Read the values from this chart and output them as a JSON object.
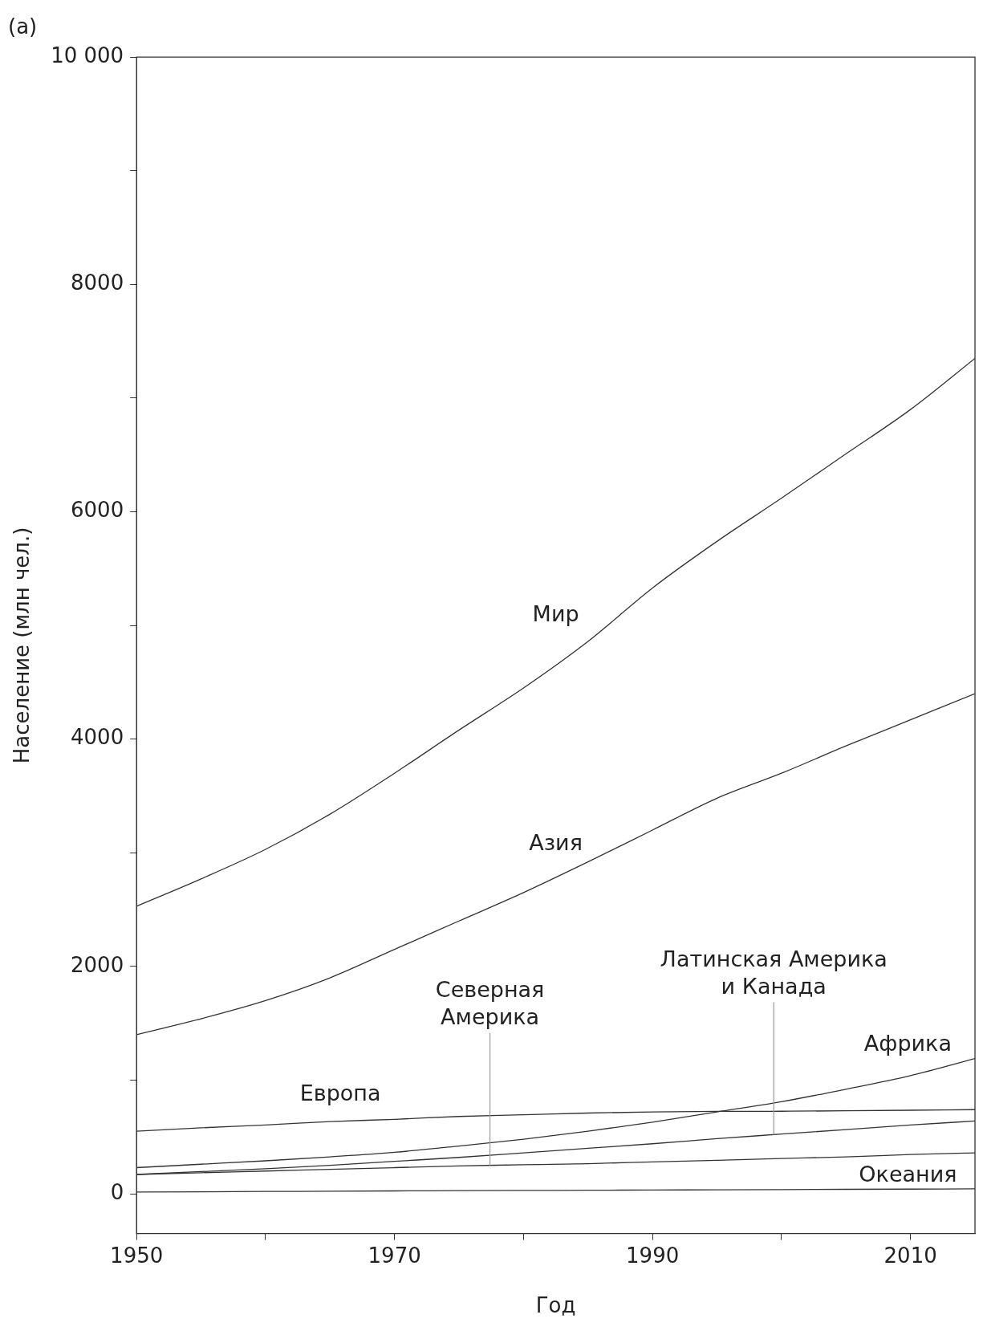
{
  "chart_data": {
    "type": "line",
    "title": "(a)",
    "xlabel": "Год",
    "ylabel": "Население (млн чел.)",
    "x": [
      1950,
      1955,
      1960,
      1965,
      1970,
      1975,
      1980,
      1985,
      1990,
      1995,
      2000,
      2005,
      2010,
      2015
    ],
    "series": [
      {
        "name": "Мир",
        "color": "#333333",
        "values": [
          2530,
          2770,
          3030,
          3340,
          3700,
          4080,
          4450,
          4860,
          5330,
          5740,
          6120,
          6510,
          6900,
          7350
        ]
      },
      {
        "name": "Азия",
        "color": "#333333",
        "values": [
          1400,
          1540,
          1700,
          1900,
          2150,
          2400,
          2650,
          2920,
          3200,
          3480,
          3700,
          3940,
          4170,
          4400
        ]
      },
      {
        "name": "Европа",
        "color": "#333333",
        "values": [
          550,
          580,
          605,
          635,
          655,
          680,
          695,
          710,
          720,
          725,
          726,
          730,
          735,
          740
        ]
      },
      {
        "name": "Африка",
        "color": "#333333",
        "values": [
          230,
          260,
          290,
          325,
          365,
          420,
          480,
          550,
          630,
          720,
          810,
          920,
          1040,
          1190
        ]
      },
      {
        "name": "Латинская Америка\nи Канада",
        "color": "#333333",
        "values": [
          170,
          195,
          220,
          250,
          285,
          320,
          360,
          400,
          440,
          485,
          525,
          565,
          605,
          640
        ]
      },
      {
        "name": "Северная\nАмерика",
        "color": "#333333",
        "values": [
          170,
          185,
          200,
          215,
          230,
          245,
          255,
          265,
          280,
          295,
          310,
          325,
          345,
          360
        ]
      },
      {
        "name": "Океания",
        "color": "#333333",
        "values": [
          15,
          17,
          20,
          22,
          25,
          27,
          29,
          31,
          33,
          35,
          37,
          39,
          41,
          43
        ]
      }
    ],
    "xlim": [
      1950,
      2015
    ],
    "xticks": [
      1950,
      {
        "value": 1960,
        "label": null
      },
      1970,
      {
        "value": 1980,
        "label": null
      },
      1990,
      {
        "value": 2000,
        "label": null
      },
      2010
    ],
    "ylim": [
      -350,
      10000
    ],
    "yticks": [
      0,
      {
        "value": 1000,
        "label": null
      },
      2000,
      {
        "value": 3000,
        "label": null
      },
      4000,
      {
        "value": 5000,
        "label": null
      },
      6000,
      {
        "value": 7000,
        "label": null
      },
      8000,
      {
        "value": 9000,
        "label": null
      },
      {
        "value": 10000,
        "label": "10 000"
      }
    ],
    "grid": false,
    "legend": false,
    "marker": "none",
    "line_style": "solid"
  }
}
